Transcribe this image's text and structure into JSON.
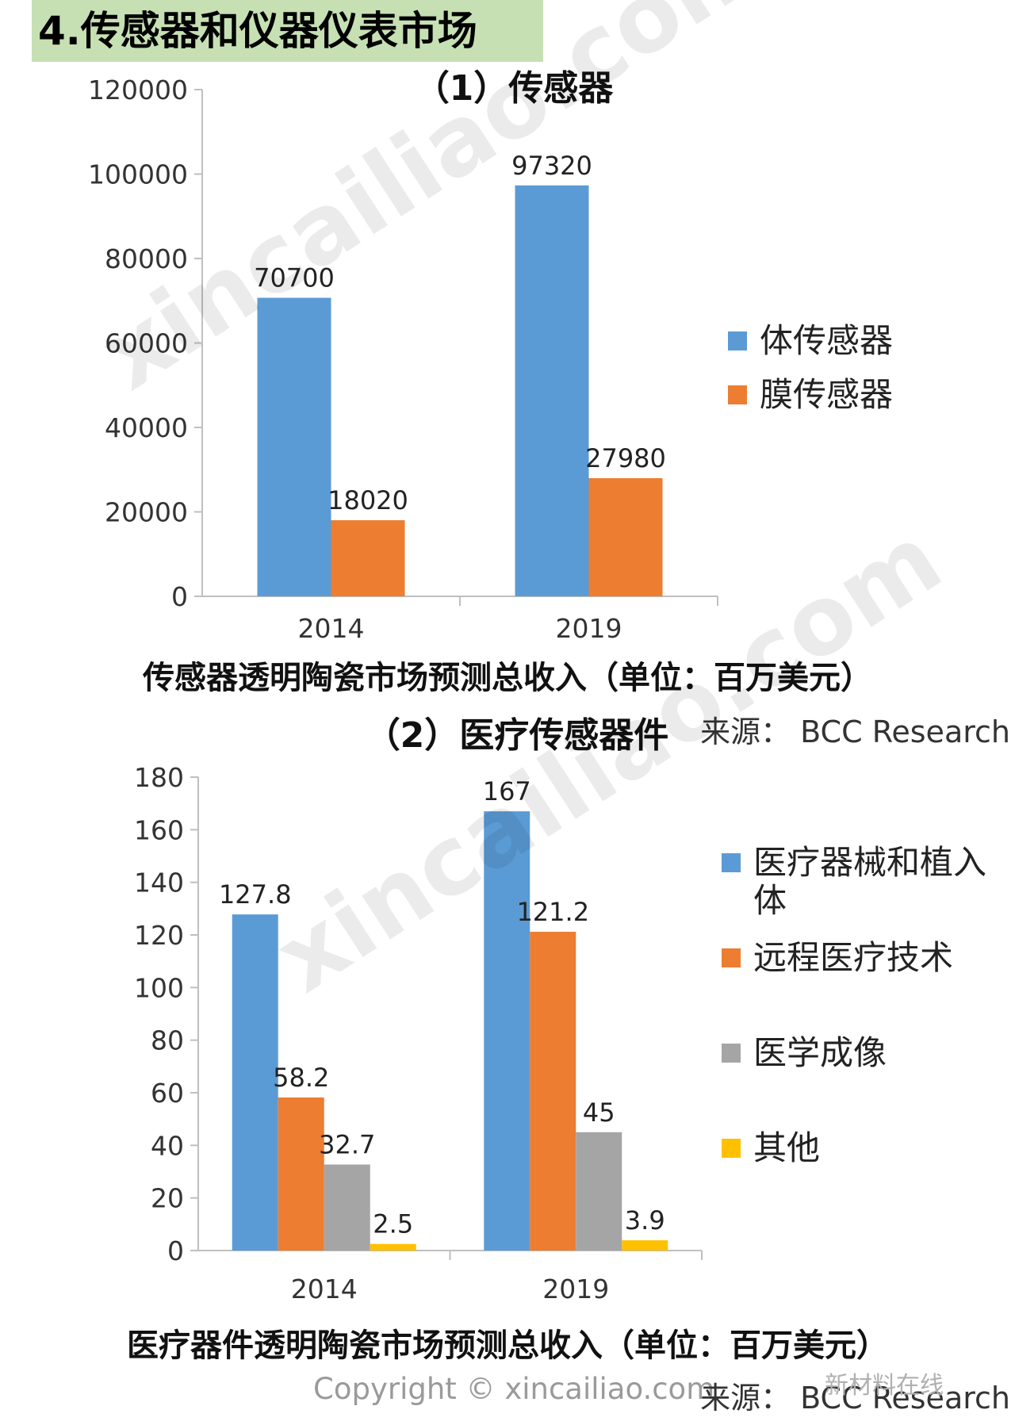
{
  "page_title": "4.传感器和仪器仪表市场",
  "watermark": "xincailiao.com",
  "copyright": "Copyright © xincailiao.com",
  "wechat_mark": "新材料在线",
  "colors": {
    "blue": "#5b9bd5",
    "orange": "#ed7d31",
    "gray": "#a5a5a5",
    "yellow": "#ffc000",
    "title_bg": "#c6e0b4"
  },
  "chart_data": [
    {
      "type": "bar",
      "title": "（1）传感器",
      "categories": [
        "2014",
        "2019"
      ],
      "series": [
        {
          "name": "体传感器",
          "values": [
            70700,
            97320
          ],
          "color": "#5b9bd5"
        },
        {
          "name": "膜传感器",
          "values": [
            18020,
            27980
          ],
          "color": "#ed7d31"
        }
      ],
      "ylim": [
        0,
        120000
      ],
      "yticks": [
        "0",
        "20000",
        "40000",
        "60000",
        "80000",
        "100000",
        "120000"
      ],
      "legend": "right",
      "grid": false,
      "caption": "传感器透明陶瓷市场预测总收入（单位：百万美元）",
      "source": "来源： BCC Research"
    },
    {
      "type": "bar",
      "title": "（2）医疗传感器件",
      "categories": [
        "2014",
        "2019"
      ],
      "series": [
        {
          "name": "医疗器械和植入体",
          "values": [
            127.8,
            167
          ],
          "color": "#5b9bd5"
        },
        {
          "name": "远程医疗技术",
          "values": [
            58.2,
            121.2
          ],
          "color": "#ed7d31"
        },
        {
          "name": "医学成像",
          "values": [
            32.7,
            45
          ],
          "color": "#a5a5a5"
        },
        {
          "name": "其他",
          "values": [
            2.5,
            3.9
          ],
          "color": "#ffc000"
        }
      ],
      "ylim": [
        0,
        180
      ],
      "yticks": [
        "0",
        "20",
        "40",
        "60",
        "80",
        "100",
        "120",
        "140",
        "160",
        "180"
      ],
      "legend": "right",
      "grid": false,
      "caption": "医疗器件透明陶瓷市场预测总收入（单位：百万美元）",
      "source": "来源： BCC Research"
    }
  ]
}
